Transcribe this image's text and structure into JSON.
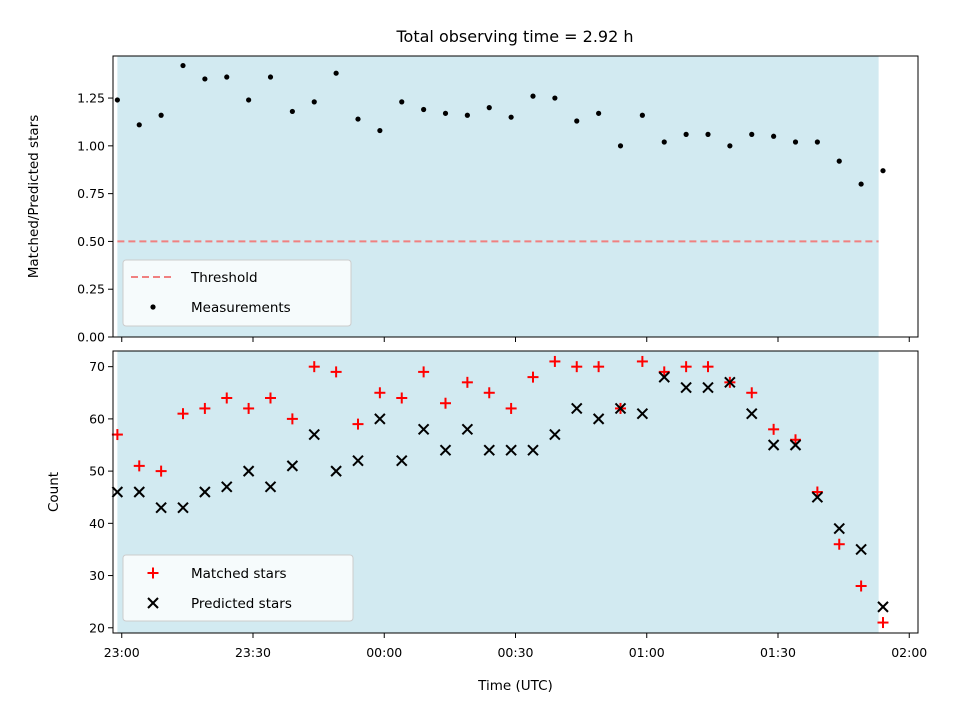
{
  "figure": {
    "title": "Total observing time = 2.92 h",
    "xlabel": "Time (UTC)"
  },
  "colors": {
    "shade": "#add8e6",
    "threshold": "#f08080",
    "measurement": "#000000",
    "matched": "#ff0000",
    "predicted": "#000000"
  },
  "chart_data": [
    {
      "type": "scatter",
      "panel": "top",
      "title": "Total observing time = 2.92 h",
      "xlabel": "",
      "ylabel": "Matched/Predicted stars",
      "x_format": "HH:MM",
      "xlim": [
        "22:58",
        "02:02"
      ],
      "ylim": [
        0.0,
        1.47
      ],
      "yticks": [
        0.0,
        0.25,
        0.5,
        0.75,
        1.0,
        1.25
      ],
      "ytick_labels": [
        "0.00",
        "0.25",
        "0.50",
        "0.75",
        "1.00",
        "1.25"
      ],
      "xticks": [
        "23:00",
        "23:30",
        "00:00",
        "00:30",
        "01:00",
        "01:30",
        "02:00"
      ],
      "shaded_span": [
        "22:59",
        "01:53"
      ],
      "legend_position": "lower left",
      "threshold": {
        "name": "Threshold",
        "value": 0.5,
        "x_range": [
          "22:59",
          "01:53"
        ]
      },
      "series": [
        {
          "name": "Measurements",
          "x": [
            "22:59",
            "23:04",
            "23:09",
            "23:14",
            "23:19",
            "23:24",
            "23:29",
            "23:34",
            "23:39",
            "23:44",
            "23:49",
            "23:54",
            "23:59",
            "00:04",
            "00:09",
            "00:14",
            "00:19",
            "00:24",
            "00:29",
            "00:34",
            "00:39",
            "00:44",
            "00:49",
            "00:54",
            "00:59",
            "01:04",
            "01:09",
            "01:14",
            "01:19",
            "01:24",
            "01:29",
            "01:34",
            "01:39",
            "01:44",
            "01:49",
            "01:54"
          ],
          "y": [
            1.24,
            1.11,
            1.16,
            1.42,
            1.35,
            1.36,
            1.24,
            1.36,
            1.18,
            1.23,
            1.38,
            1.14,
            1.08,
            1.23,
            1.19,
            1.17,
            1.16,
            1.2,
            1.15,
            1.26,
            1.25,
            1.13,
            1.17,
            1.0,
            1.16,
            1.02,
            1.06,
            1.06,
            1.0,
            1.06,
            1.05,
            1.02,
            1.02,
            0.92,
            0.8,
            0.87
          ]
        }
      ]
    },
    {
      "type": "scatter",
      "panel": "bottom",
      "xlabel": "Time (UTC)",
      "ylabel": "Count",
      "x_format": "HH:MM",
      "xlim": [
        "22:58",
        "02:02"
      ],
      "ylim": [
        19,
        73
      ],
      "yticks": [
        20,
        30,
        40,
        50,
        60,
        70
      ],
      "ytick_labels": [
        "20",
        "30",
        "40",
        "50",
        "60",
        "70"
      ],
      "xticks": [
        "23:00",
        "23:30",
        "00:00",
        "00:30",
        "01:00",
        "01:30",
        "02:00"
      ],
      "xtick_labels": [
        "23:00",
        "23:30",
        "00:00",
        "00:30",
        "01:00",
        "01:30",
        "02:00"
      ],
      "shaded_span": [
        "22:59",
        "01:53"
      ],
      "legend_position": "lower left",
      "series": [
        {
          "name": "Matched stars",
          "marker": "plus",
          "x": [
            "22:59",
            "23:04",
            "23:09",
            "23:14",
            "23:19",
            "23:24",
            "23:29",
            "23:34",
            "23:39",
            "23:44",
            "23:49",
            "23:54",
            "23:59",
            "00:04",
            "00:09",
            "00:14",
            "00:19",
            "00:24",
            "00:29",
            "00:34",
            "00:39",
            "00:44",
            "00:49",
            "00:54",
            "00:59",
            "01:04",
            "01:09",
            "01:14",
            "01:19",
            "01:24",
            "01:29",
            "01:34",
            "01:39",
            "01:44",
            "01:49",
            "01:54"
          ],
          "y": [
            57,
            51,
            50,
            61,
            62,
            64,
            62,
            64,
            60,
            70,
            69,
            59,
            65,
            64,
            69,
            63,
            67,
            65,
            62,
            68,
            71,
            70,
            70,
            62,
            71,
            69,
            70,
            70,
            67,
            65,
            58,
            56,
            46,
            36,
            28,
            21
          ]
        },
        {
          "name": "Predicted stars",
          "marker": "x",
          "x": [
            "22:59",
            "23:04",
            "23:09",
            "23:14",
            "23:19",
            "23:24",
            "23:29",
            "23:34",
            "23:39",
            "23:44",
            "23:49",
            "23:54",
            "23:59",
            "00:04",
            "00:09",
            "00:14",
            "00:19",
            "00:24",
            "00:29",
            "00:34",
            "00:39",
            "00:44",
            "00:49",
            "00:54",
            "00:59",
            "01:04",
            "01:09",
            "01:14",
            "01:19",
            "01:24",
            "01:29",
            "01:34",
            "01:39",
            "01:44",
            "01:49",
            "01:54"
          ],
          "y": [
            46,
            46,
            43,
            43,
            46,
            47,
            50,
            47,
            51,
            57,
            50,
            52,
            60,
            52,
            58,
            54,
            58,
            54,
            54,
            54,
            57,
            62,
            60,
            62,
            61,
            68,
            66,
            66,
            67,
            61,
            55,
            55,
            45,
            39,
            35,
            24
          ]
        }
      ]
    }
  ]
}
